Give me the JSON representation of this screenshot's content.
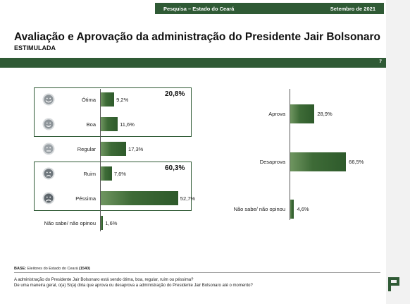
{
  "header": {
    "left": "Pesquisa – Estado do Ceará",
    "right": "Setembro de 2021",
    "title": "Avaliação e Aprovação da administração do Presidente Jair Bolsonaro",
    "subtitle": "ESTIMULADA",
    "page_number": "7"
  },
  "colors": {
    "brand_green": "#2f5a35",
    "bar_green": "#3e6b37"
  },
  "chart_data": [
    {
      "type": "bar",
      "orientation": "horizontal",
      "categories": [
        "Ótima",
        "Boa",
        "Regular",
        "Ruim",
        "Péssima",
        "Não sabe/ não opinou"
      ],
      "values": [
        9.2,
        11.6,
        17.3,
        7.6,
        52.7,
        1.6
      ],
      "value_labels": [
        "9,2%",
        "11,6%",
        "17,3%",
        "7,6%",
        "52,7%",
        "1,6%"
      ],
      "icons": [
        "smile-very-happy-icon",
        "smile-happy-icon",
        "neutral-face-icon",
        "sad-face-icon",
        "very-sad-face-icon",
        ""
      ],
      "groups": [
        {
          "label": "20,8%",
          "members": [
            "Ótima",
            "Boa"
          ]
        },
        {
          "label": "60,3%",
          "members": [
            "Ruim",
            "Péssima"
          ]
        }
      ],
      "xlim": [
        0,
        60
      ]
    },
    {
      "type": "bar",
      "orientation": "horizontal",
      "categories": [
        "Aprova",
        "Desaprova",
        "Não sabe/ não opinou"
      ],
      "values": [
        28.9,
        66.5,
        4.6
      ],
      "value_labels": [
        "28,9%",
        "66,5%",
        "4,6%"
      ],
      "xlim": [
        0,
        84
      ]
    }
  ],
  "footer": {
    "base_label": "BASE:",
    "base_text": " Eleitores do Estado do Ceará ",
    "base_count": "(1540)",
    "question_1": "A administração do Presidente Jair Bolsonaro está sendo ótima, boa, regular, ruim ou péssima?",
    "question_2": "De uma maneira geral, o(a) Sr(a) diria que aprova ou desaprova a administração do Presidente Jair Bolsonaro até o momento?"
  }
}
